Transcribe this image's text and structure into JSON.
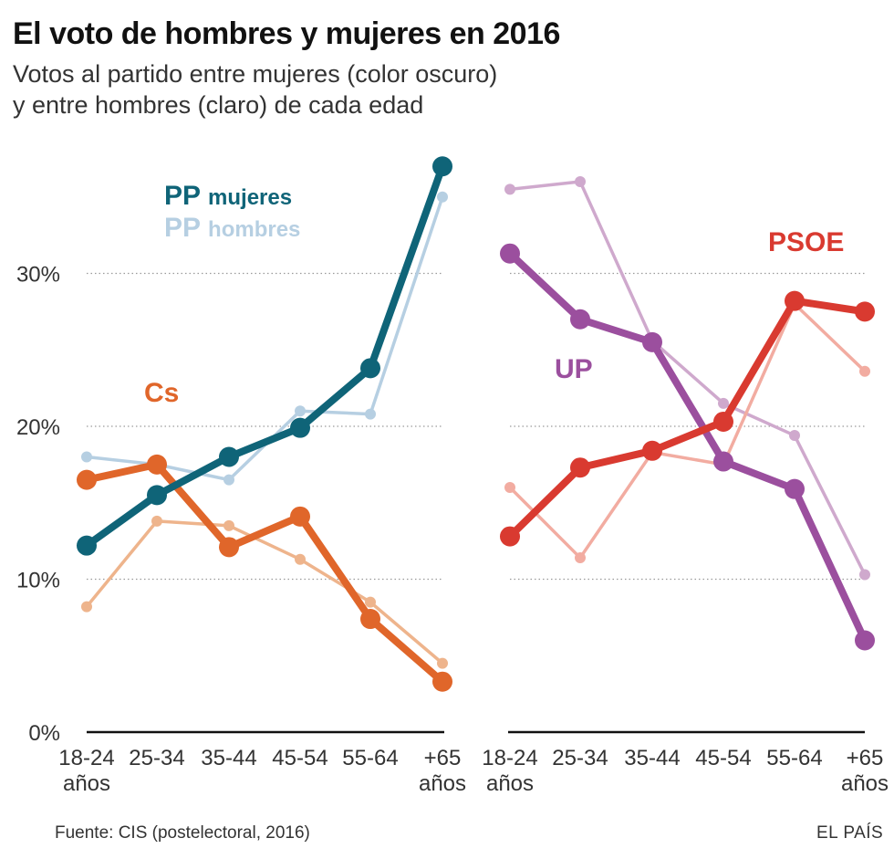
{
  "title": "El voto de hombres y mujeres en 2016",
  "subtitle_line1": "Votos al partido entre mujeres (color oscuro)",
  "subtitle_line2": "y entre hombres (claro) de cada edad",
  "source": "Fuente: CIS (postelectoral, 2016)",
  "brand": "EL PAÍS",
  "colors": {
    "pp_women": "#0f6478",
    "pp_men": "#b6cfe2",
    "cs_women": "#e0662a",
    "cs_men": "#eeb48c",
    "up_women": "#9b4f9e",
    "up_men": "#cfa9cd",
    "psoe_women": "#d93a30",
    "psoe_men": "#f2aca1",
    "grid": "#9a9a9a",
    "axis": "#111111"
  },
  "chart_data": [
    {
      "type": "line",
      "panel": "left",
      "categories": [
        "18-24 años",
        "25-34",
        "35-44",
        "45-54",
        "55-64",
        "+65 años"
      ],
      "y_ticks": [
        0,
        10,
        20,
        30
      ],
      "y_tick_labels": [
        "0%",
        "10%",
        "20%",
        "30%"
      ],
      "ylim": [
        0,
        38
      ],
      "grid": true,
      "series": [
        {
          "name": "PP hombres",
          "key": "pp_men",
          "gender": "hombres",
          "values": [
            18.0,
            17.5,
            16.5,
            21.0,
            20.8,
            35.0
          ]
        },
        {
          "name": "Cs hombres",
          "key": "cs_men",
          "gender": "hombres",
          "values": [
            8.2,
            13.8,
            13.5,
            11.3,
            8.5,
            4.5
          ]
        },
        {
          "name": "Cs mujeres",
          "key": "cs_women",
          "gender": "mujeres",
          "values": [
            16.5,
            17.5,
            12.1,
            14.1,
            7.4,
            3.3
          ]
        },
        {
          "name": "PP mujeres",
          "key": "pp_women",
          "gender": "mujeres",
          "values": [
            12.2,
            15.5,
            18.0,
            19.9,
            23.8,
            37.0
          ]
        }
      ],
      "annotations": [
        {
          "id": "pp_mujeres",
          "party": "PP",
          "text": "mujeres",
          "key": "pp_women"
        },
        {
          "id": "pp_hombres",
          "party": "PP",
          "text": "hombres",
          "key": "pp_men"
        },
        {
          "id": "cs",
          "party": "Cs",
          "text": "",
          "key": "cs_women"
        }
      ]
    },
    {
      "type": "line",
      "panel": "right",
      "categories": [
        "18-24 años",
        "25-34",
        "35-44",
        "45-54",
        "55-64",
        "+65 años"
      ],
      "y_ticks": [
        0,
        10,
        20,
        30
      ],
      "ylim": [
        0,
        38
      ],
      "grid": true,
      "series": [
        {
          "name": "UP hombres",
          "key": "up_men",
          "gender": "hombres",
          "values": [
            35.5,
            36.0,
            25.6,
            21.5,
            19.4,
            10.3
          ]
        },
        {
          "name": "PSOE hombres",
          "key": "psoe_men",
          "gender": "hombres",
          "values": [
            16.0,
            11.4,
            18.3,
            17.5,
            28.0,
            23.6
          ]
        },
        {
          "name": "UP mujeres",
          "key": "up_women",
          "gender": "mujeres",
          "values": [
            31.3,
            27.0,
            25.5,
            17.7,
            15.9,
            6.0
          ]
        },
        {
          "name": "PSOE mujeres",
          "key": "psoe_women",
          "gender": "mujeres",
          "values": [
            12.8,
            17.3,
            18.4,
            20.3,
            28.2,
            27.5
          ]
        }
      ],
      "annotations": [
        {
          "id": "psoe",
          "party": "PSOE",
          "text": "",
          "key": "psoe_women"
        },
        {
          "id": "up",
          "party": "UP",
          "text": "",
          "key": "up_women"
        }
      ]
    }
  ]
}
